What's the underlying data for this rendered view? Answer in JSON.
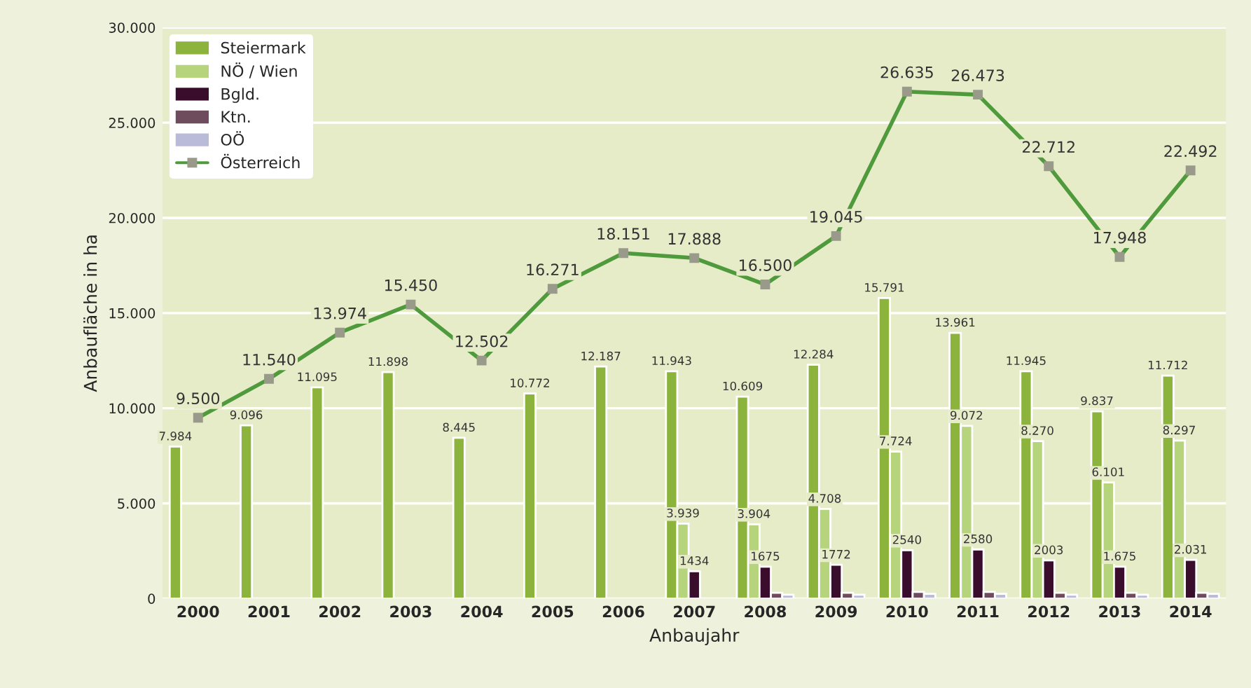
{
  "chart_data": {
    "type": "bar",
    "xlabel": "Anbaujahr",
    "ylabel": "Anbaufläche in ha",
    "categories": [
      "2000",
      "2001",
      "2002",
      "2003",
      "2004",
      "2005",
      "2006",
      "2007",
      "2008",
      "2009",
      "2010",
      "2011",
      "2012",
      "2013",
      "2014"
    ],
    "series": [
      {
        "name": "Steiermark",
        "color": "#8cb43c",
        "values": [
          7984,
          9096,
          11095,
          11898,
          8445,
          10772,
          12187,
          11943,
          10609,
          12284,
          15791,
          13961,
          11945,
          9837,
          11712
        ],
        "value_labels": [
          "7.984",
          "9.096",
          "11.095",
          "11.898",
          "8.445",
          "10.772",
          "12.187",
          "11.943",
          "10.609",
          "12.284",
          "15.791",
          "13.961",
          "11.945",
          "9.837",
          "11.712"
        ]
      },
      {
        "name": "NÖ / Wien",
        "color": "#b6d47c",
        "values": [
          null,
          null,
          null,
          null,
          null,
          null,
          null,
          3939,
          3904,
          4708,
          7724,
          9072,
          8270,
          6101,
          8297
        ],
        "value_labels": [
          null,
          null,
          null,
          null,
          null,
          null,
          null,
          "3.939",
          "3.904",
          "4.708",
          "7.724",
          "9.072",
          "8.270",
          "6.101",
          "8.297"
        ]
      },
      {
        "name": "Bgld.",
        "color": "#3a0d2c",
        "values": [
          null,
          null,
          null,
          null,
          null,
          null,
          null,
          1434,
          1675,
          1772,
          2540,
          2580,
          2003,
          1675,
          2031
        ],
        "value_labels": [
          null,
          null,
          null,
          null,
          null,
          null,
          null,
          "1434",
          "1675",
          "1772",
          "2540",
          "2580",
          "2003",
          "1.675",
          "2.031"
        ]
      },
      {
        "name": "Ktn.",
        "color": "#6e4c5e",
        "values": [
          null,
          null,
          null,
          null,
          null,
          null,
          null,
          null,
          300,
          300,
          350,
          350,
          300,
          300,
          300
        ]
      },
      {
        "name": "OÖ",
        "color": "#babbd9",
        "values": [
          null,
          null,
          null,
          null,
          null,
          null,
          null,
          null,
          200,
          200,
          250,
          250,
          200,
          200,
          250
        ]
      },
      {
        "name": "Österreich",
        "type": "line",
        "color": "#4f9a3c",
        "marker": "square",
        "values": [
          9500,
          11540,
          13974,
          15450,
          12502,
          16271,
          18151,
          17888,
          16500,
          19045,
          26635,
          26473,
          22712,
          17948,
          22492
        ],
        "value_labels": [
          "9.500",
          "11.540",
          "13.974",
          "15.450",
          "12.502",
          "16.271",
          "18.151",
          "17.888",
          "16.500",
          "19.045",
          "26.635",
          "26.473",
          "22.712",
          "17.948",
          "22.492"
        ]
      }
    ],
    "ylim": [
      0,
      30000
    ],
    "yticks": [
      {
        "value": 0,
        "label": "0"
      },
      {
        "value": 5000,
        "label": "5.000"
      },
      {
        "value": 10000,
        "label": "10.000"
      },
      {
        "value": 15000,
        "label": "15.000"
      },
      {
        "value": 20000,
        "label": "20.000"
      },
      {
        "value": 25000,
        "label": "25.000"
      },
      {
        "value": 30000,
        "label": "30.000"
      }
    ],
    "grid": "y",
    "legend": "top left"
  }
}
